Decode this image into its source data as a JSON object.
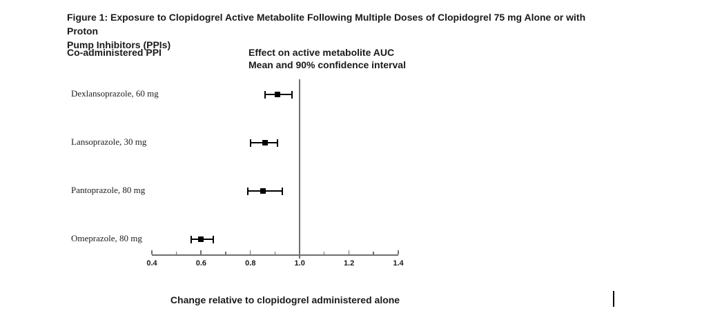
{
  "figure": {
    "title_line1": "Figure 1: Exposure to Clopidogrel Active Metabolite Following Multiple Doses of Clopidogrel 75 mg Alone or with Proton",
    "title_line2": "Pump Inhibitors (PPIs)",
    "left_column_header": "Co-administered PPI",
    "right_column_header_line1": "Effect on active metabolite AUC",
    "right_column_header_line2": "Mean and 90% confidence interval",
    "x_axis_caption": "Change relative to clopidogrel administered alone"
  },
  "chart_data": {
    "type": "scatter",
    "subtype": "forest-plot",
    "title": "Figure 1: Exposure to Clopidogrel Active Metabolite Following Multiple Doses of Clopidogrel 75 mg Alone or with Proton Pump Inhibitors (PPIs)",
    "xlabel": "Change relative to clopidogrel administered alone",
    "ylabel": "Co-administered PPI",
    "xlim": [
      0.4,
      1.4
    ],
    "grid": false,
    "legend": null,
    "reference_line_x": 1.0,
    "x_axis": {
      "major_ticks": [
        0.4,
        0.6,
        0.8,
        1.0,
        1.2,
        1.4
      ],
      "major_tick_labels": [
        "0.4",
        "0.6",
        "0.8",
        "1.0",
        "1.2",
        "1.4"
      ],
      "minor_ticks": [
        0.5,
        0.7,
        0.9,
        1.1,
        1.3
      ]
    },
    "rows": [
      {
        "label": "Dexlansoprazole, 60 mg",
        "mean": 0.91,
        "ci_low": 0.86,
        "ci_high": 0.97
      },
      {
        "label": "Lansoprazole, 30 mg",
        "mean": 0.86,
        "ci_low": 0.8,
        "ci_high": 0.91
      },
      {
        "label": "Pantoprazole, 80 mg",
        "mean": 0.85,
        "ci_low": 0.79,
        "ci_high": 0.93
      },
      {
        "label": "Omeprazole, 80 mg",
        "mean": 0.6,
        "ci_low": 0.56,
        "ci_high": 0.65
      }
    ]
  },
  "colors": {
    "background": "#ffffff",
    "text": "#1a1a1a",
    "axis": "#6e6e6e",
    "marker": "#000000"
  },
  "misc": {
    "text_cursor_glyph": "|"
  }
}
